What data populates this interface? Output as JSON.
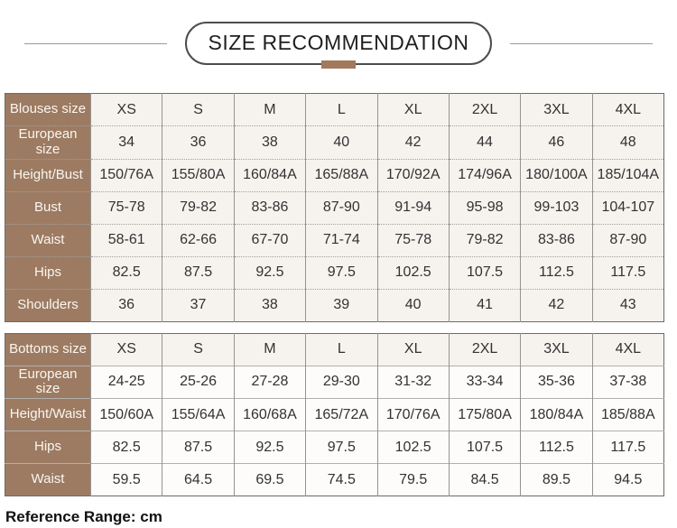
{
  "title": {
    "text": "SIZE RECOMMENDATION"
  },
  "footer": {
    "text": "Reference Range: cm"
  },
  "colors": {
    "header_bg": "#9c7b62",
    "header_text": "#faf6f0",
    "cell_bg_cream": "#f6f3ef",
    "cell_bg_white": "#fdfcfa",
    "accent_bar": "#a2795a",
    "pill_border": "#4d4d4d"
  },
  "tables": [
    {
      "name": "blouses-size-table",
      "rows": [
        {
          "label": "Blouses size",
          "values": [
            "XS",
            "S",
            "M",
            "L",
            "XL",
            "2XL",
            "3XL",
            "4XL"
          ]
        },
        {
          "label": "European size",
          "values": [
            "34",
            "36",
            "38",
            "40",
            "42",
            "44",
            "46",
            "48"
          ]
        },
        {
          "label": "Height/Bust",
          "values": [
            "150/76A",
            "155/80A",
            "160/84A",
            "165/88A",
            "170/92A",
            "174/96A",
            "180/100A",
            "185/104A"
          ]
        },
        {
          "label": "Bust",
          "values": [
            "75-78",
            "79-82",
            "83-86",
            "87-90",
            "91-94",
            "95-98",
            "99-103",
            "104-107"
          ]
        },
        {
          "label": "Waist",
          "values": [
            "58-61",
            "62-66",
            "67-70",
            "71-74",
            "75-78",
            "79-82",
            "83-86",
            "87-90"
          ]
        },
        {
          "label": "Hips",
          "values": [
            "82.5",
            "87.5",
            "92.5",
            "97.5",
            "102.5",
            "107.5",
            "112.5",
            "117.5"
          ]
        },
        {
          "label": "Shoulders",
          "values": [
            "36",
            "37",
            "38",
            "39",
            "40",
            "41",
            "42",
            "43"
          ]
        }
      ]
    },
    {
      "name": "bottoms-size-table",
      "rows": [
        {
          "label": "Bottoms size",
          "values": [
            "XS",
            "S",
            "M",
            "L",
            "XL",
            "2XL",
            "3XL",
            "4XL"
          ]
        },
        {
          "label": "European size",
          "values": [
            "24-25",
            "25-26",
            "27-28",
            "29-30",
            "31-32",
            "33-34",
            "35-36",
            "37-38"
          ]
        },
        {
          "label": "Height/Waist",
          "values": [
            "150/60A",
            "155/64A",
            "160/68A",
            "165/72A",
            "170/76A",
            "175/80A",
            "180/84A",
            "185/88A"
          ]
        },
        {
          "label": "Hips",
          "values": [
            "82.5",
            "87.5",
            "92.5",
            "97.5",
            "102.5",
            "107.5",
            "112.5",
            "117.5"
          ]
        },
        {
          "label": "Waist",
          "values": [
            "59.5",
            "64.5",
            "69.5",
            "74.5",
            "79.5",
            "84.5",
            "89.5",
            "94.5"
          ]
        }
      ]
    }
  ]
}
